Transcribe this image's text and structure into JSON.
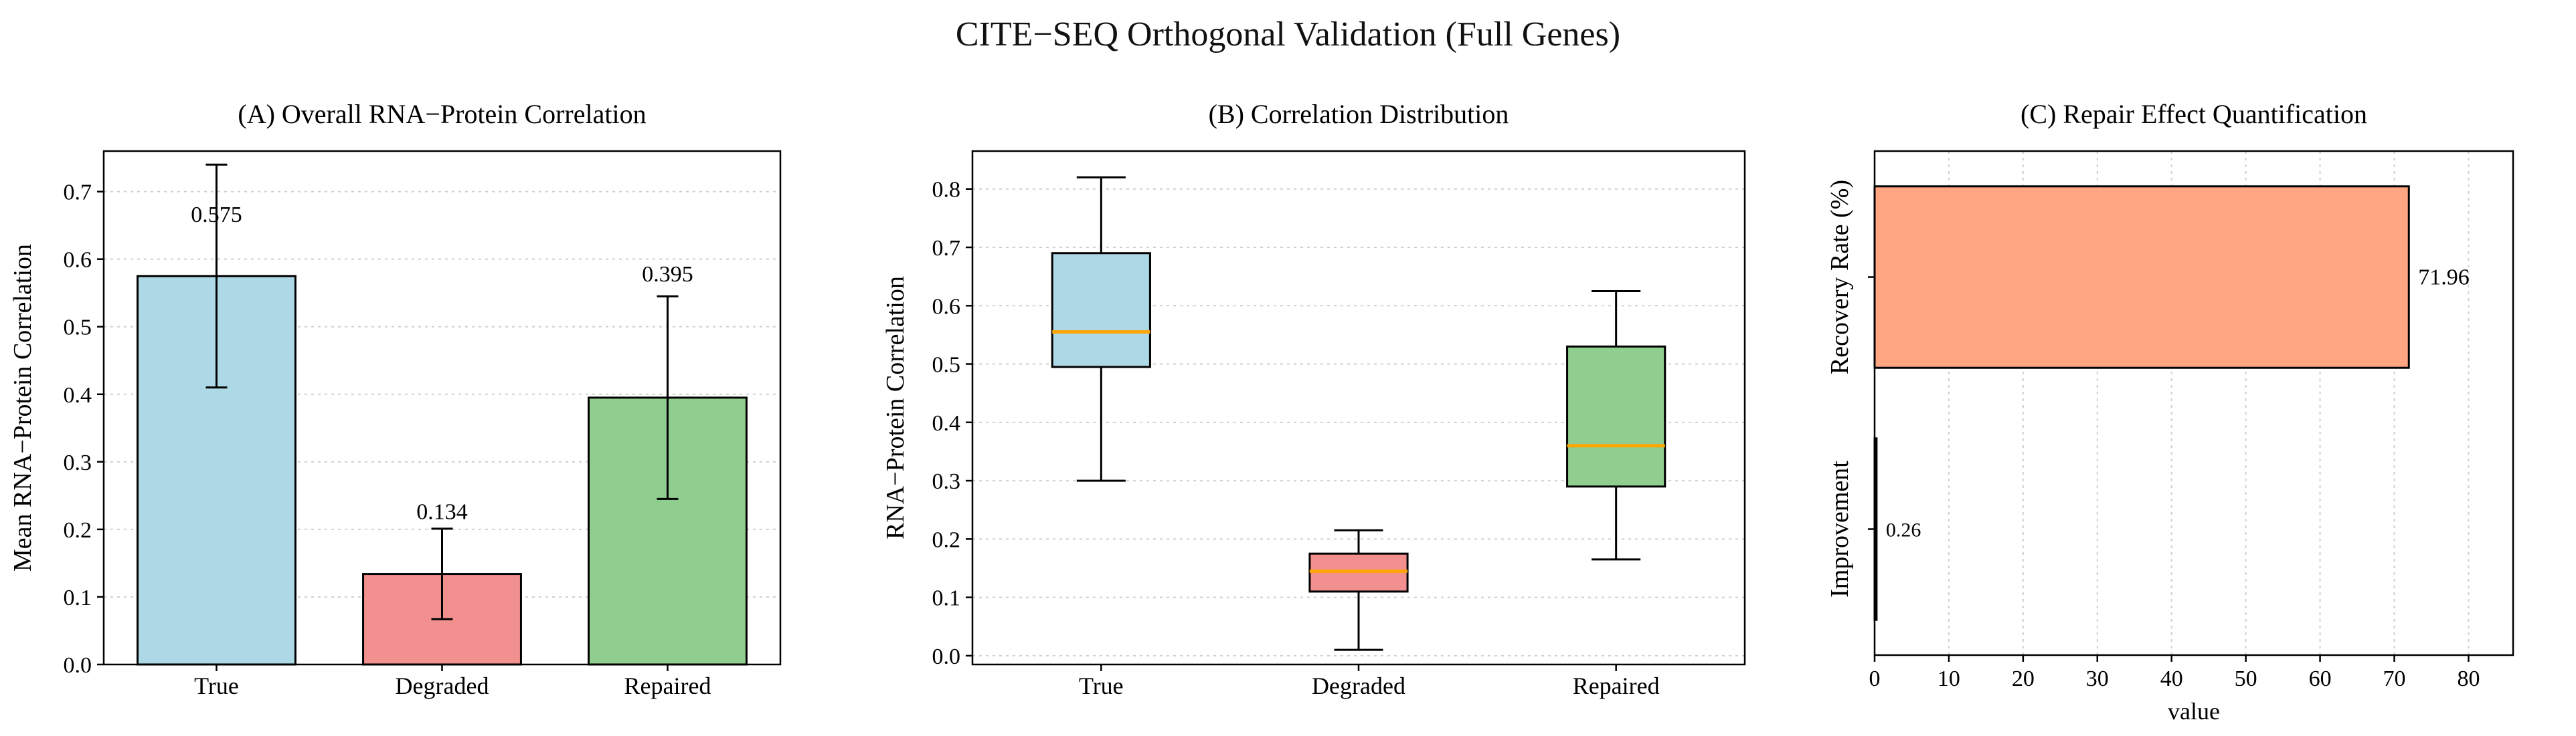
{
  "figure_title": "CITE−SEQ Orthogonal Validation (Full Genes)",
  "background": "#ffffff",
  "grid_color": "#cfcfcf",
  "chart_data": [
    {
      "id": "panel_a",
      "type": "bar",
      "title": "(A) Overall RNA−Protein Correlation",
      "ylabel": "Mean RNA−Protein Correlation",
      "categories": [
        "True",
        "Degraded",
        "Repaired"
      ],
      "values": [
        0.575,
        0.134,
        0.395
      ],
      "errors": [
        0.165,
        0.067,
        0.15
      ],
      "value_labels": [
        "0.575",
        "0.134",
        "0.395"
      ],
      "label_y": [
        0.655,
        0.215,
        0.567
      ],
      "bar_colors": [
        "#ADD8E6",
        "#F29090",
        "#8FCE8F"
      ],
      "edge_color": "#000000",
      "ylim": [
        0,
        0.76
      ],
      "yticks": [
        0.0,
        0.1,
        0.2,
        0.3,
        0.4,
        0.5,
        0.6,
        0.7
      ],
      "ytick_labels": [
        "0.0",
        "0.1",
        "0.2",
        "0.3",
        "0.4",
        "0.5",
        "0.6",
        "0.7"
      ],
      "grid": true,
      "legend": "none"
    },
    {
      "id": "panel_b",
      "type": "box",
      "title": "(B) Correlation Distribution",
      "ylabel": "RNA−Protein Correlation",
      "categories": [
        "True",
        "Degraded",
        "Repaired"
      ],
      "boxes": [
        {
          "whislo": 0.3,
          "q1": 0.495,
          "med": 0.555,
          "q3": 0.69,
          "whishi": 0.82
        },
        {
          "whislo": 0.01,
          "q1": 0.11,
          "med": 0.145,
          "q3": 0.175,
          "whishi": 0.215
        },
        {
          "whislo": 0.165,
          "q1": 0.29,
          "med": 0.36,
          "q3": 0.53,
          "whishi": 0.625
        }
      ],
      "box_colors": [
        "#ADD8E6",
        "#F29090",
        "#8FCE8F"
      ],
      "median_color": "#FFA500",
      "ylim": [
        -0.015,
        0.865
      ],
      "yticks": [
        0.0,
        0.1,
        0.2,
        0.3,
        0.4,
        0.5,
        0.6,
        0.7,
        0.8
      ],
      "ytick_labels": [
        "0.0",
        "0.1",
        "0.2",
        "0.3",
        "0.4",
        "0.5",
        "0.6",
        "0.7",
        "0.8"
      ],
      "grid": true,
      "legend": "none"
    },
    {
      "id": "panel_c",
      "type": "barh",
      "title": "(C) Repair Effect Quantification",
      "xlabel": "value",
      "categories": [
        "Recovery Rate (%)",
        "Improvement"
      ],
      "values": [
        71.96,
        0.26
      ],
      "value_labels": [
        "71.96",
        "0.26"
      ],
      "bar_color": "#FFA582",
      "edge_color": "#000000",
      "xlim": [
        0,
        86
      ],
      "xticks": [
        0,
        10,
        20,
        30,
        40,
        50,
        60,
        70,
        80
      ],
      "xtick_labels": [
        "0",
        "10",
        "20",
        "30",
        "40",
        "50",
        "60",
        "70",
        "80"
      ],
      "grid": true,
      "legend": "none"
    }
  ]
}
